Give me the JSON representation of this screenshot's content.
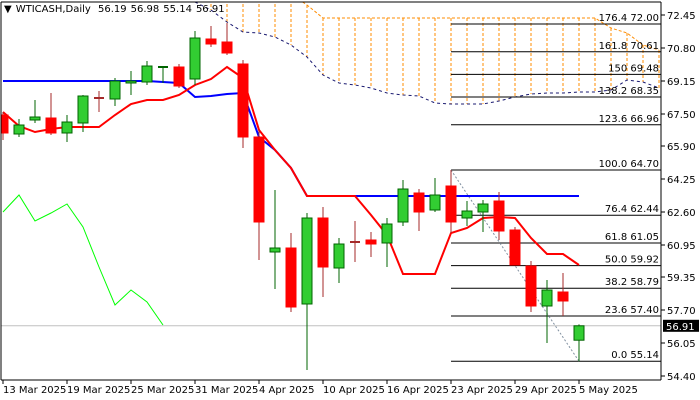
{
  "header": {
    "symbol_timeframe": "WTICASH,Daily",
    "open": "56.19",
    "high": "56.98",
    "low": "55.14",
    "close": "56.91",
    "menu_icon": "triangle-down-icon"
  },
  "colors": {
    "bull_body": "#32CD32",
    "bull_edge": "#006400",
    "bear_body": "#FF0000",
    "bear_edge": "#A52A2A",
    "tenkan": "#FF0000",
    "kijun": "#0000FF",
    "chikou": "#00FF00",
    "span_a": "#FF8C00",
    "span_b": "#191970",
    "fib": "#000000",
    "price_line": "#C0C0C0"
  },
  "chart_data": {
    "type": "candlestick",
    "title": "WTICASH,Daily",
    "ylim": [
      54.0,
      72.6
    ],
    "y_ticks": [
      "72.45",
      "70.80",
      "69.15",
      "67.50",
      "65.90",
      "64.25",
      "62.60",
      "60.95",
      "59.35",
      "57.70",
      "56.05",
      "54.40"
    ],
    "x_tick_labels": [
      {
        "bar": 0,
        "label": "13 Mar 2025"
      },
      {
        "bar": 4,
        "label": "19 Mar 2025"
      },
      {
        "bar": 8,
        "label": "25 Mar 2025"
      },
      {
        "bar": 12,
        "label": "31 Mar 2025"
      },
      {
        "bar": 16,
        "label": "4 Apr 2025"
      },
      {
        "bar": 20,
        "label": "10 Apr 2025"
      },
      {
        "bar": 24,
        "label": "16 Apr 2025"
      },
      {
        "bar": 28,
        "label": "23 Apr 2025"
      },
      {
        "bar": 32,
        "label": "29 Apr 2025"
      },
      {
        "bar": 36,
        "label": "5 May 2025"
      }
    ],
    "ohlc": [
      [
        67.45,
        67.6,
        66.2,
        66.55
      ],
      [
        66.5,
        67.25,
        66.35,
        66.95
      ],
      [
        67.2,
        68.2,
        67.05,
        67.35
      ],
      [
        67.3,
        68.55,
        66.45,
        66.55
      ],
      [
        66.55,
        67.45,
        66.1,
        67.1
      ],
      [
        67.05,
        68.45,
        66.6,
        68.4
      ],
      [
        68.3,
        68.65,
        67.6,
        68.3
      ],
      [
        68.25,
        69.3,
        67.9,
        69.15
      ],
      [
        69.05,
        69.65,
        68.45,
        69.15
      ],
      [
        69.1,
        70.15,
        68.95,
        69.9
      ],
      [
        69.8,
        69.85,
        69.05,
        69.85
      ],
      [
        69.85,
        70.0,
        68.8,
        68.9
      ],
      [
        69.25,
        71.65,
        68.95,
        71.3
      ],
      [
        71.25,
        71.9,
        70.85,
        71.0
      ],
      [
        71.1,
        72.05,
        70.45,
        70.55
      ],
      [
        70.0,
        70.2,
        65.8,
        66.35
      ],
      [
        66.35,
        66.65,
        60.2,
        62.1
      ],
      [
        60.6,
        63.7,
        58.75,
        60.8
      ],
      [
        60.8,
        61.55,
        57.6,
        57.85
      ],
      [
        58.0,
        62.55,
        54.7,
        62.3
      ],
      [
        62.3,
        62.85,
        58.35,
        59.85
      ],
      [
        59.8,
        61.3,
        59.05,
        61.0
      ],
      [
        61.1,
        62.15,
        60.1,
        61.1
      ],
      [
        61.2,
        61.6,
        60.35,
        61.0
      ],
      [
        61.05,
        62.3,
        59.85,
        62.0
      ],
      [
        62.1,
        64.2,
        61.9,
        63.75
      ],
      [
        63.55,
        63.75,
        61.65,
        62.6
      ],
      [
        62.7,
        64.3,
        62.6,
        63.45
      ],
      [
        63.9,
        64.7,
        61.55,
        62.1
      ],
      [
        62.3,
        63.15,
        61.9,
        62.65
      ],
      [
        62.6,
        63.2,
        61.6,
        63.0
      ],
      [
        63.15,
        63.6,
        61.2,
        61.65
      ],
      [
        61.7,
        61.85,
        59.95,
        59.95
      ],
      [
        59.9,
        60.15,
        57.6,
        57.9
      ],
      [
        57.9,
        59.2,
        56.05,
        58.7
      ],
      [
        58.6,
        59.55,
        57.4,
        58.15
      ],
      [
        56.19,
        56.98,
        55.14,
        56.91
      ]
    ],
    "tenkan": [
      67.6,
      66.9,
      66.6,
      66.75,
      66.85,
      66.85,
      66.85,
      67.45,
      68.0,
      68.2,
      68.2,
      68.45,
      68.95,
      69.25,
      69.85,
      69.3,
      66.7,
      65.7,
      64.8,
      63.4,
      63.4,
      63.4,
      63.4,
      62.45,
      61.45,
      59.5,
      59.5,
      59.5,
      61.55,
      61.8,
      62.3,
      62.35,
      62.3,
      61.3,
      60.5,
      60.5,
      59.95
    ],
    "kijun": [
      69.15,
      69.15,
      69.15,
      69.15,
      69.15,
      69.15,
      69.15,
      69.15,
      69.15,
      69.15,
      69.1,
      69.05,
      68.35,
      68.4,
      68.5,
      68.55,
      66.35,
      65.7,
      64.8,
      63.4,
      63.4,
      63.4,
      63.4,
      63.4,
      63.4,
      63.4,
      63.4,
      63.4,
      63.4,
      63.4,
      63.4,
      63.4,
      63.4,
      63.4,
      63.4,
      63.4,
      63.4
    ],
    "chikou": [
      62.6,
      63.45,
      62.15,
      62.55,
      63.0,
      61.85,
      59.85,
      57.95,
      58.7,
      58.1,
      56.95
    ],
    "span_a": {
      "start_bar": 12,
      "values": [
        73.5,
        73.5,
        73.5,
        73.5,
        73.5,
        73.5,
        73.5,
        72.95,
        72.3,
        72.3,
        72.3,
        72.3,
        72.3,
        72.3,
        72.3,
        72.3,
        72.3,
        72.3,
        72.3,
        72.3,
        72.3,
        72.3,
        72.3,
        72.3,
        72.3,
        72.3,
        71.8,
        71.55,
        70.95,
        70.7
      ]
    },
    "span_b": {
      "start_bar": 12,
      "values": [
        73.1,
        72.7,
        72.1,
        71.6,
        71.55,
        71.35,
        70.95,
        70.35,
        69.45,
        69.05,
        68.95,
        68.8,
        68.55,
        68.45,
        68.4,
        68.05,
        68.0,
        68.0,
        68.0,
        68.15,
        68.35,
        68.5,
        68.55,
        68.55,
        68.6,
        68.6,
        68.7,
        69.2,
        69.1,
        68.8
      ]
    },
    "fibonacci": {
      "from": {
        "bar": 28,
        "price": 64.7
      },
      "to": {
        "bar": 36,
        "price": 55.14
      },
      "levels": [
        {
          "ratio": "0.0",
          "price": "55.14"
        },
        {
          "ratio": "23.6",
          "price": "57.40"
        },
        {
          "ratio": "38.2",
          "price": "58.79"
        },
        {
          "ratio": "50.0",
          "price": "59.92"
        },
        {
          "ratio": "61.8",
          "price": "61.05"
        },
        {
          "ratio": "76.4",
          "price": "62.44"
        },
        {
          "ratio": "100.0",
          "price": "64.70"
        },
        {
          "ratio": "123.6",
          "price": "66.96"
        },
        {
          "ratio": "138.2",
          "price": "68.35"
        },
        {
          "ratio": "150",
          "price": "69.48"
        },
        {
          "ratio": "161.8",
          "price": "70.61"
        },
        {
          "ratio": "176.4",
          "price": "72.00"
        }
      ]
    },
    "current_price": "56.91"
  }
}
